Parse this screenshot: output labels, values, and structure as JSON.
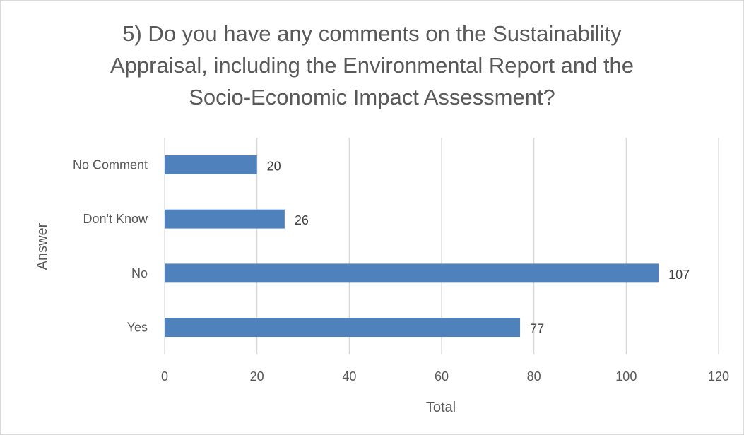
{
  "chart_data": {
    "type": "bar",
    "orientation": "horizontal",
    "title_lines": [
      "5) Do you have any comments on the Sustainability",
      "Appraisal, including the Environmental Report and the",
      "Socio-Economic Impact Assessment?"
    ],
    "categories": [
      "No Comment",
      "Don't Know",
      "No",
      "Yes"
    ],
    "values": [
      20,
      26,
      107,
      77
    ],
    "xlabel": "Total",
    "ylabel": "Answer",
    "xlim": [
      0,
      120
    ],
    "xticks": [
      0,
      20,
      40,
      60,
      80,
      100,
      120
    ],
    "grid": "vertical",
    "legend": "none",
    "bar_color": "#4f81bd",
    "grid_color": "#d9d9d9",
    "text_color": "#595959"
  }
}
